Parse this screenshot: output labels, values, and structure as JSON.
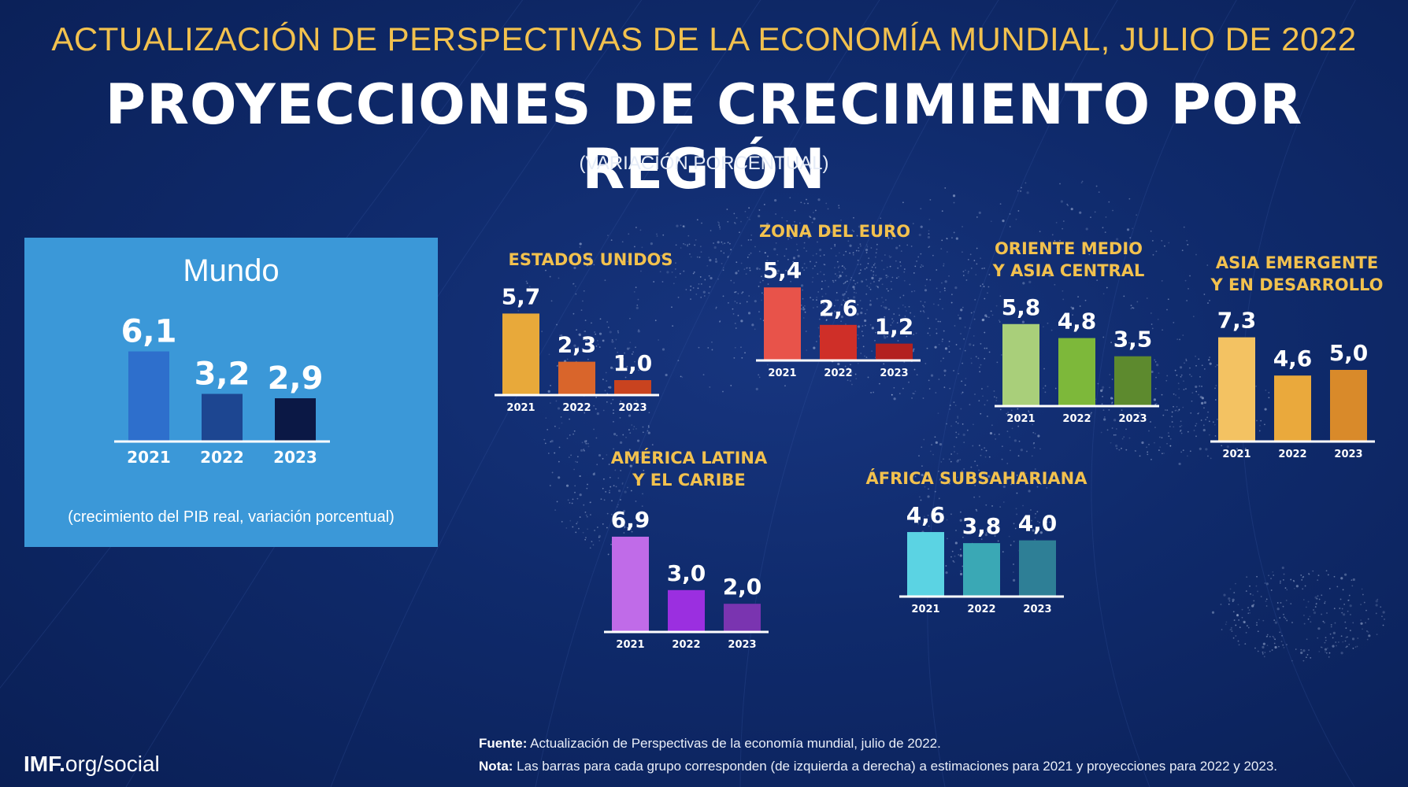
{
  "header": {
    "subtitle": "ACTUALIZACIÓN DE PERSPECTIVAS DE LA ECONOMÍA MUNDIAL, JULIO DE 2022",
    "title": "PROYECCIONES DE CRECIMIENTO POR REGIÓN",
    "unit": "(VARIACIÓN PORCENTUAL)"
  },
  "world": {
    "title": "Mundo",
    "note": "(crecimiento del PIB real, variación porcentual)"
  },
  "chart_data": [
    {
      "id": "mundo",
      "type": "bar",
      "categories": [
        "2021",
        "2022",
        "2023"
      ],
      "values": [
        6.1,
        3.2,
        2.9
      ],
      "labels": [
        "6,1",
        "3,2",
        "2,9"
      ],
      "colors": [
        "#2e6fcc",
        "#1d4691",
        "#0b1845"
      ]
    },
    {
      "id": "estados-unidos",
      "type": "bar",
      "title": "ESTADOS UNIDOS",
      "categories": [
        "2021",
        "2022",
        "2023"
      ],
      "values": [
        5.7,
        2.3,
        1.0
      ],
      "labels": [
        "5,7",
        "2,3",
        "1,0"
      ],
      "colors": [
        "#e8a93a",
        "#d9652b",
        "#c9431f"
      ]
    },
    {
      "id": "zona-del-euro",
      "type": "bar",
      "title": "ZONA DEL EURO",
      "categories": [
        "2021",
        "2022",
        "2023"
      ],
      "values": [
        5.4,
        2.6,
        1.2
      ],
      "labels": [
        "5,4",
        "2,6",
        "1,2"
      ],
      "colors": [
        "#e8534a",
        "#cf2f28",
        "#b3211f"
      ]
    },
    {
      "id": "oriente-medio",
      "type": "bar",
      "title": "ORIENTE MEDIO\nY ASIA CENTRAL",
      "categories": [
        "2021",
        "2022",
        "2023"
      ],
      "values": [
        5.8,
        4.8,
        3.5
      ],
      "labels": [
        "5,8",
        "4,8",
        "3,5"
      ],
      "colors": [
        "#a9cf7a",
        "#7db83a",
        "#5d8a2e"
      ]
    },
    {
      "id": "asia-emergente",
      "type": "bar",
      "title": "ASIA EMERGENTE\nY EN DESARROLLO",
      "categories": [
        "2021",
        "2022",
        "2023"
      ],
      "values": [
        7.3,
        4.6,
        5.0
      ],
      "labels": [
        "7,3",
        "4,6",
        "5,0"
      ],
      "colors": [
        "#f3c262",
        "#eaa93c",
        "#d98a2a"
      ]
    },
    {
      "id": "america-latina",
      "type": "bar",
      "title": "AMÉRICA LATINA\nY EL CARIBE",
      "categories": [
        "2021",
        "2022",
        "2023"
      ],
      "values": [
        6.9,
        3.0,
        2.0
      ],
      "labels": [
        "6,9",
        "3,0",
        "2,0"
      ],
      "colors": [
        "#c06be8",
        "#9b2fe0",
        "#7a34b0"
      ]
    },
    {
      "id": "africa-subsahariana",
      "type": "bar",
      "title": "ÁFRICA SUBSAHARIANA",
      "categories": [
        "2021",
        "2022",
        "2023"
      ],
      "values": [
        4.6,
        3.8,
        4.0
      ],
      "labels": [
        "4,6",
        "3,8",
        "4,0"
      ],
      "colors": [
        "#5bd3e3",
        "#3aa8b5",
        "#2e7f96"
      ]
    }
  ],
  "footer": {
    "source_label": "Fuente:",
    "source_text": " Actualización de Perspectivas de la economía mundial, julio de 2022.",
    "note_label": "Nota:",
    "note_text": " Las barras para cada grupo corresponden (de izquierda a derecha) a estimaciones para 2021 y proyecciones para 2022 y 2023.",
    "brand_bold": "IMF.",
    "brand_rest": "org/social"
  }
}
